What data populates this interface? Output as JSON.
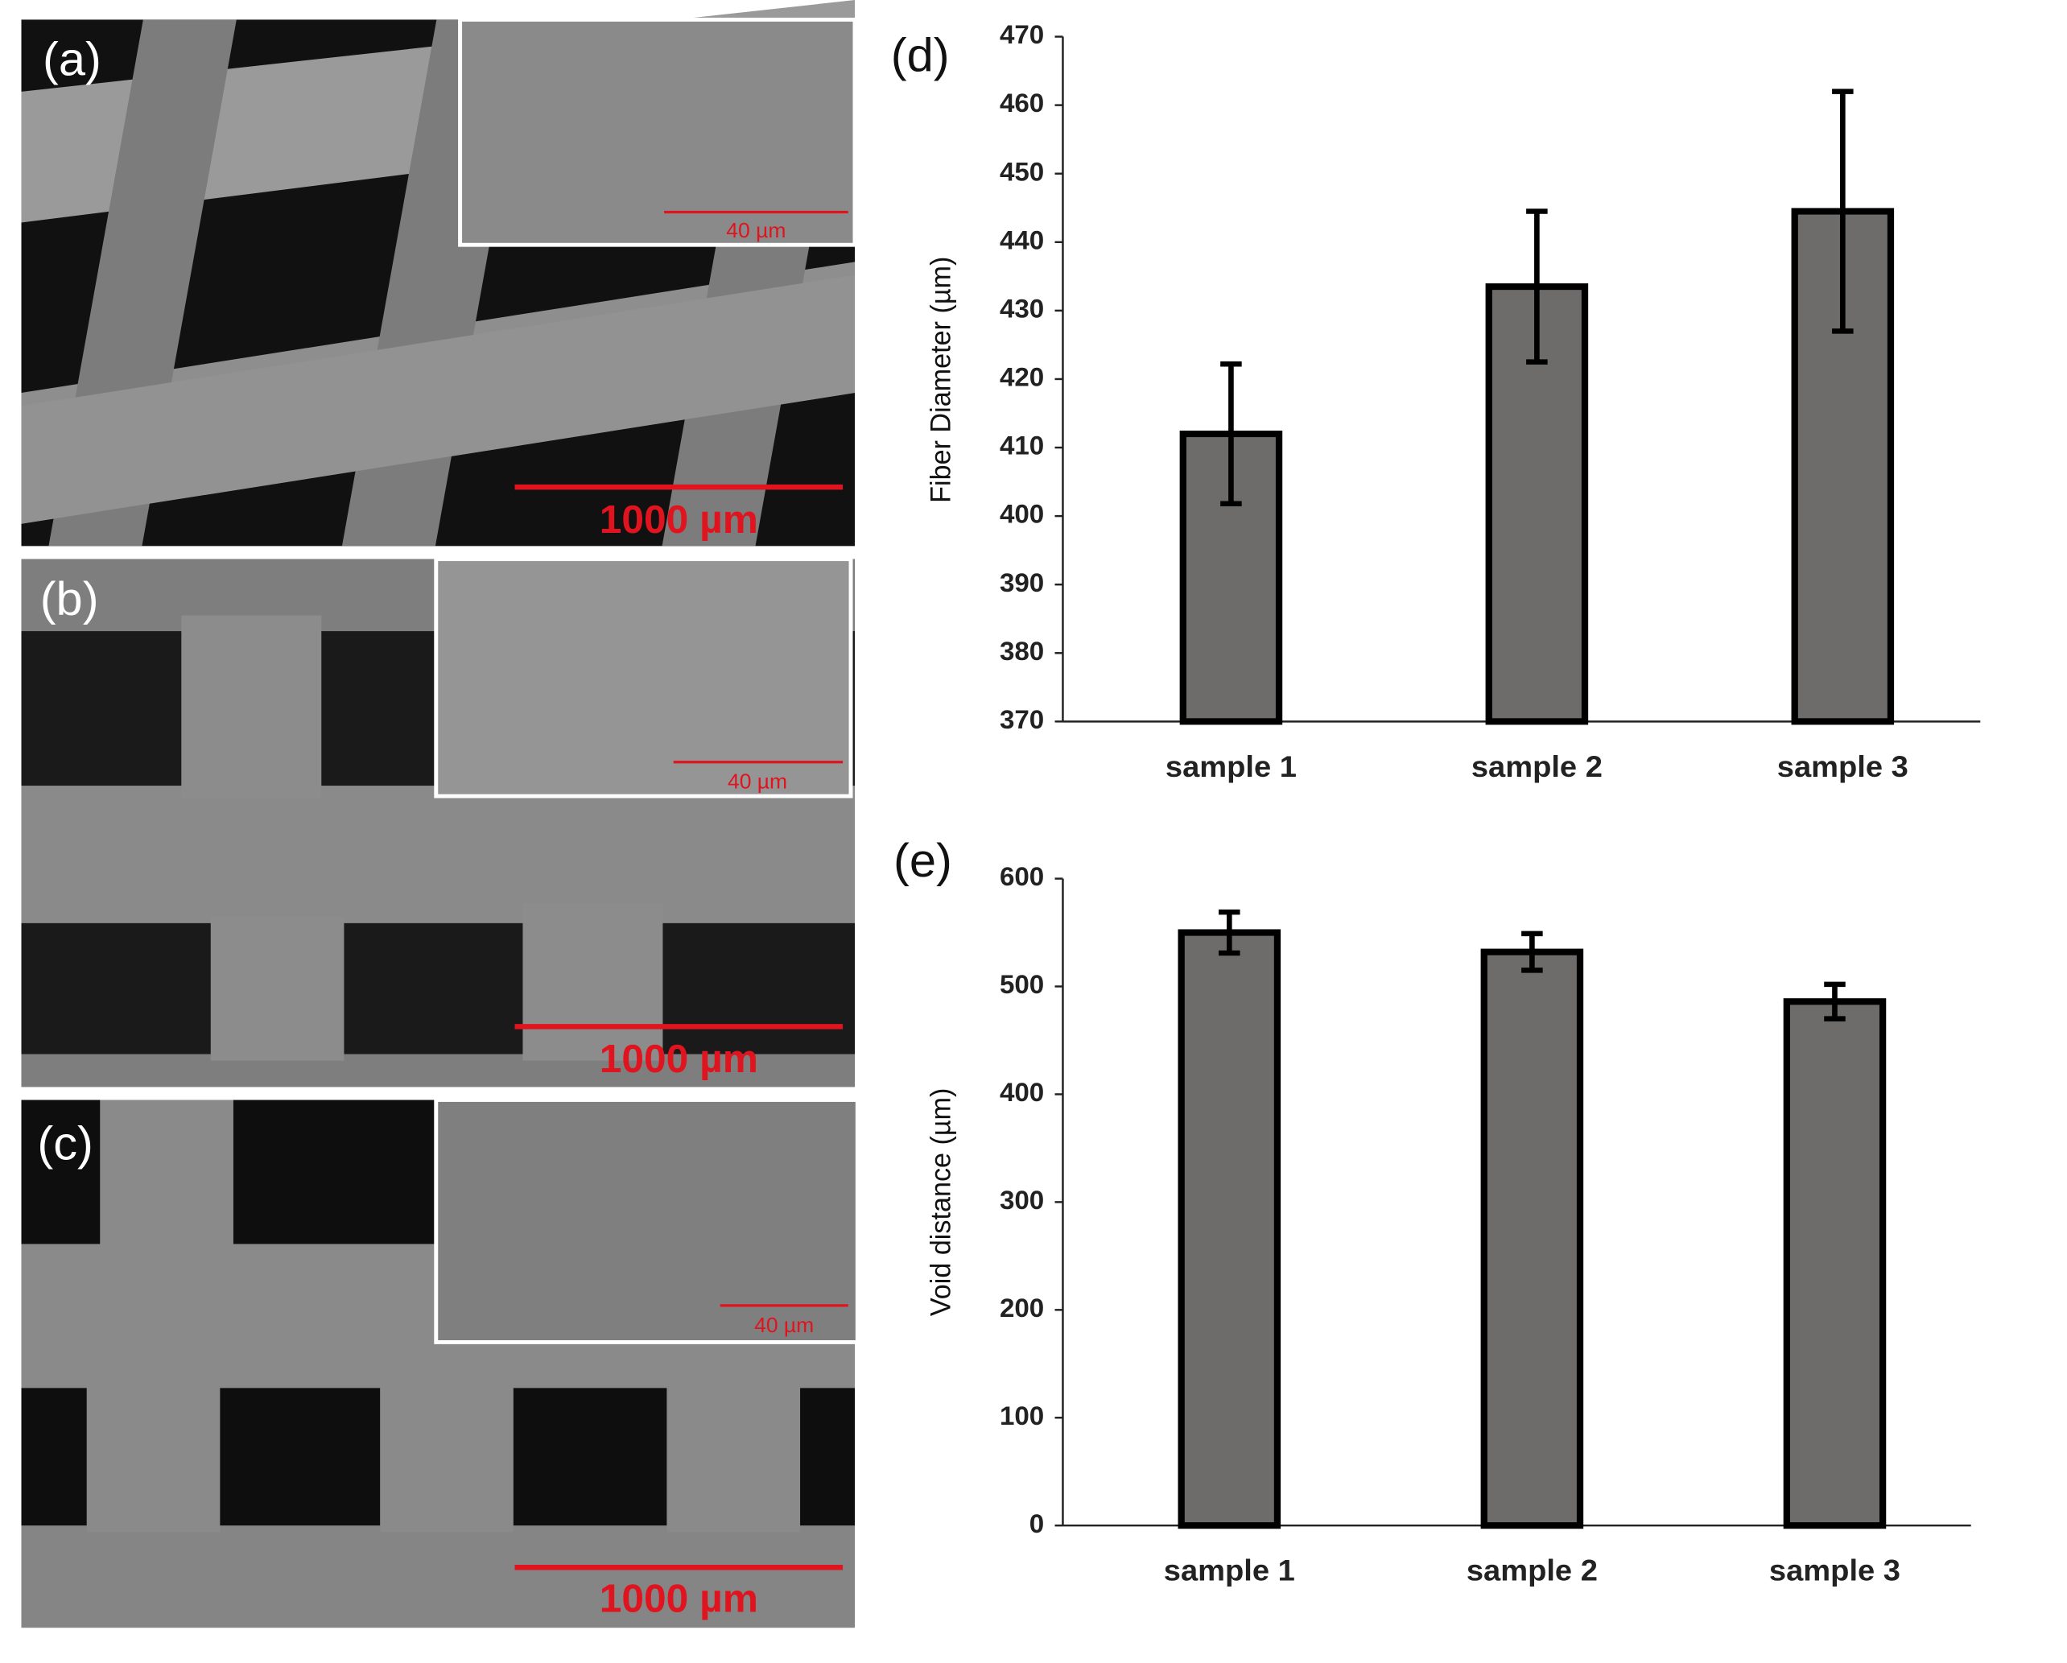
{
  "panels": [
    {
      "label": "(a)",
      "scale_bar": "1000 µm",
      "inset_scale_bar": "40 µm"
    },
    {
      "label": "(b)",
      "scale_bar": "1000 µm",
      "inset_scale_bar": "40 µm"
    },
    {
      "label": "(c)",
      "scale_bar": "1000 µm",
      "inset_scale_bar": "40 µm"
    }
  ],
  "chart_data": [
    {
      "type": "bar",
      "panel_label": "(d)",
      "y_label": "Fiber Diameter (µm)",
      "categories": [
        "sample 1",
        "sample 2",
        "sample 3"
      ],
      "values": [
        412,
        433.5,
        444.5
      ],
      "errors": [
        10.2,
        11,
        17.5
      ],
      "color": "#6e6b6b",
      "ylim": [
        370,
        470
      ],
      "yticks": [
        370,
        380,
        390,
        400,
        410,
        420,
        430,
        440,
        450,
        460,
        470
      ]
    },
    {
      "type": "bar",
      "panel_label": "(e)",
      "y_label": "Void distance (µm)",
      "categories": [
        "sample 1",
        "sample 2",
        "sample 3"
      ],
      "values": [
        550,
        532,
        486
      ],
      "errors": [
        19,
        17,
        16
      ],
      "color": "#6e6b6b",
      "ylim": [
        0,
        600
      ],
      "yticks": [
        0,
        100,
        200,
        300,
        400,
        500,
        600
      ]
    }
  ]
}
